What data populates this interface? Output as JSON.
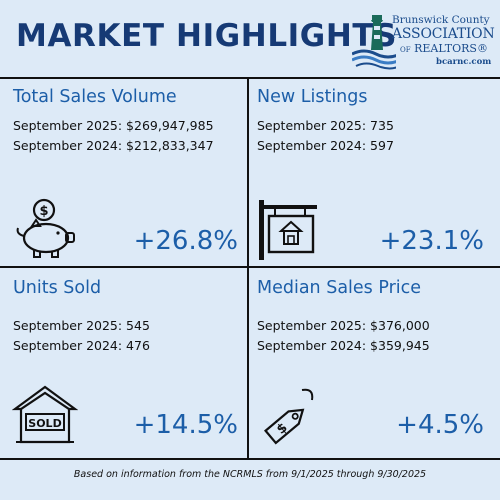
{
  "header": {
    "title": "MARKET HIGHLIGHTS"
  },
  "logo": {
    "line1": "Brunswick County",
    "line2": "ASSOCIATION",
    "line3_of": "OF",
    "line3": "REALTORS®",
    "url": "bcarnc.com"
  },
  "colors": {
    "background": "#ddeaf7",
    "title": "#163a75",
    "accent": "#1c5ea8"
  },
  "quadrants": [
    {
      "title": "Total Sales Volume",
      "line1": "September 2025: $269,947,985",
      "line2": "September 2024: $212,833,347",
      "change": "+26.8%",
      "icon": "piggy-bank-icon"
    },
    {
      "title": "New Listings",
      "line1": "September 2025: 735",
      "line2": "September 2024: 597",
      "change": "+23.1%",
      "icon": "house-sign-icon"
    },
    {
      "title": "Units Sold",
      "line1": "September 2025: 545",
      "line2": "September 2024: 476",
      "change": "+14.5%",
      "icon": "sold-sign-icon",
      "icon_text": "SOLD"
    },
    {
      "title": "Median Sales Price",
      "line1": "September 2025: $376,000",
      "line2": "September 2024: $359,945",
      "change": "+4.5%",
      "icon": "price-tag-icon"
    }
  ],
  "footer": {
    "note": "Based on information from the NCRMLS from 9/1/2025 through 9/30/2025"
  }
}
